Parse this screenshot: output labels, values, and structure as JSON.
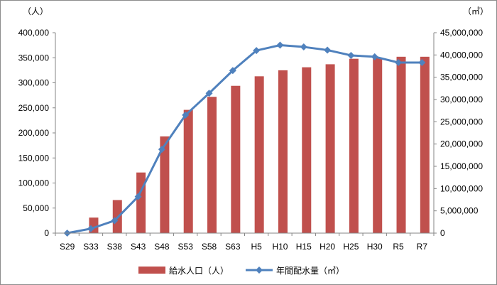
{
  "chart_data": {
    "type": "bar+line",
    "categories": [
      "S29",
      "S33",
      "S38",
      "S43",
      "S48",
      "S53",
      "S58",
      "S63",
      "H5",
      "H10",
      "H15",
      "H20",
      "H25",
      "H30",
      "R5",
      "R7"
    ],
    "left_axis": {
      "unit_label": "（人）",
      "ylim": [
        0,
        400000
      ],
      "ticks": [
        "0",
        "50,000",
        "100,000",
        "150,000",
        "200,000",
        "250,000",
        "300,000",
        "350,000",
        "400,000"
      ]
    },
    "right_axis": {
      "unit_label": "（㎥）",
      "ylim": [
        0,
        45000000
      ],
      "ticks": [
        "0",
        "5,000,000",
        "10,000,000",
        "15,000,000",
        "20,000,000",
        "25,000,000",
        "30,000,000",
        "35,000,000",
        "40,000,000",
        "45,000,000"
      ]
    },
    "series": [
      {
        "name": "給水人口（人）",
        "type": "bar",
        "axis": "left",
        "color": "#c0504d",
        "values": [
          0,
          31000,
          66000,
          121000,
          193000,
          246000,
          272000,
          294000,
          313000,
          325000,
          331000,
          337000,
          348000,
          349000,
          352000,
          352000
        ]
      },
      {
        "name": "年間配水量（㎥）",
        "type": "line",
        "axis": "right",
        "color": "#4f81bd",
        "values": [
          0,
          1000000,
          2800000,
          8200000,
          18800000,
          26500000,
          31400000,
          36500000,
          41000000,
          42200000,
          41800000,
          41100000,
          39900000,
          39600000,
          38300000,
          38300000
        ]
      }
    ],
    "grid": false,
    "legend_position": "bottom"
  }
}
